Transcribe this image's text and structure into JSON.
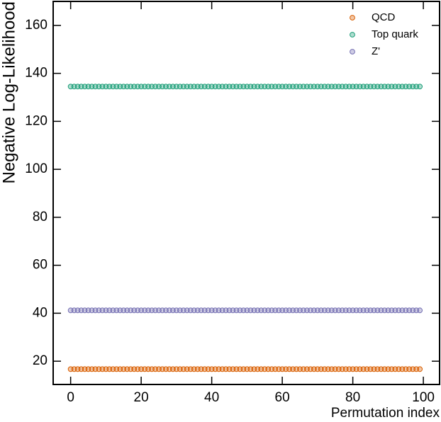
{
  "chart_data": {
    "type": "scatter",
    "x_label": "Permutation index",
    "y_label": "Negative Log-Likelihood",
    "x": [
      0,
      1,
      2,
      3,
      4,
      5,
      6,
      7,
      8,
      9,
      10,
      11,
      12,
      13,
      14,
      15,
      16,
      17,
      18,
      19,
      20,
      21,
      22,
      23,
      24,
      25,
      26,
      27,
      28,
      29,
      30,
      31,
      32,
      33,
      34,
      35,
      36,
      37,
      38,
      39,
      40,
      41,
      42,
      43,
      44,
      45,
      46,
      47,
      48,
      49,
      50,
      51,
      52,
      53,
      54,
      55,
      56,
      57,
      58,
      59,
      60,
      61,
      62,
      63,
      64,
      65,
      66,
      67,
      68,
      69,
      70,
      71,
      72,
      73,
      74,
      75,
      76,
      77,
      78,
      79,
      80,
      81,
      82,
      83,
      84,
      85,
      86,
      87,
      88,
      89,
      90,
      91,
      92,
      93,
      94,
      95,
      96,
      97,
      98,
      99
    ],
    "series": [
      {
        "name": "QCD",
        "color": "#d95f02",
        "values": [
          16.7,
          16.7,
          16.7,
          16.7,
          16.7,
          16.7,
          16.7,
          16.7,
          16.7,
          16.7,
          16.7,
          16.7,
          16.7,
          16.7,
          16.7,
          16.7,
          16.7,
          16.7,
          16.7,
          16.7,
          16.7,
          16.7,
          16.7,
          16.7,
          16.7,
          16.7,
          16.7,
          16.7,
          16.7,
          16.7,
          16.7,
          16.7,
          16.7,
          16.7,
          16.7,
          16.7,
          16.7,
          16.7,
          16.7,
          16.7,
          16.7,
          16.7,
          16.7,
          16.7,
          16.7,
          16.7,
          16.7,
          16.7,
          16.7,
          16.7,
          16.7,
          16.7,
          16.7,
          16.7,
          16.7,
          16.7,
          16.7,
          16.7,
          16.7,
          16.7,
          16.7,
          16.7,
          16.7,
          16.7,
          16.7,
          16.7,
          16.7,
          16.7,
          16.7,
          16.7,
          16.7,
          16.7,
          16.7,
          16.7,
          16.7,
          16.7,
          16.7,
          16.7,
          16.7,
          16.7,
          16.7,
          16.7,
          16.7,
          16.7,
          16.7,
          16.7,
          16.7,
          16.7,
          16.7,
          16.7,
          16.7,
          16.7,
          16.7,
          16.7,
          16.7,
          16.7,
          16.7,
          16.7,
          16.7,
          16.7
        ]
      },
      {
        "name": "Top quark",
        "color": "#1b9e77",
        "values": [
          134.5,
          134.5,
          134.5,
          134.5,
          134.5,
          134.5,
          134.5,
          134.5,
          134.5,
          134.5,
          134.5,
          134.5,
          134.5,
          134.5,
          134.5,
          134.5,
          134.5,
          134.5,
          134.5,
          134.5,
          134.5,
          134.5,
          134.5,
          134.5,
          134.5,
          134.5,
          134.5,
          134.5,
          134.5,
          134.5,
          134.5,
          134.5,
          134.5,
          134.5,
          134.5,
          134.5,
          134.5,
          134.5,
          134.5,
          134.5,
          134.5,
          134.5,
          134.5,
          134.5,
          134.5,
          134.5,
          134.5,
          134.5,
          134.5,
          134.5,
          134.5,
          134.5,
          134.5,
          134.5,
          134.5,
          134.5,
          134.5,
          134.5,
          134.5,
          134.5,
          134.5,
          134.5,
          134.5,
          134.5,
          134.5,
          134.5,
          134.5,
          134.5,
          134.5,
          134.5,
          134.5,
          134.5,
          134.5,
          134.5,
          134.5,
          134.5,
          134.5,
          134.5,
          134.5,
          134.5,
          134.5,
          134.5,
          134.5,
          134.5,
          134.5,
          134.5,
          134.5,
          134.5,
          134.5,
          134.5,
          134.5,
          134.5,
          134.5,
          134.5,
          134.5,
          134.5,
          134.5,
          134.5,
          134.5,
          134.5
        ]
      },
      {
        "name": "Z'",
        "color": "#7570b3",
        "values": [
          41.2,
          41.2,
          41.2,
          41.2,
          41.2,
          41.2,
          41.2,
          41.2,
          41.2,
          41.2,
          41.2,
          41.2,
          41.2,
          41.2,
          41.2,
          41.2,
          41.2,
          41.2,
          41.2,
          41.2,
          41.2,
          41.2,
          41.2,
          41.2,
          41.2,
          41.2,
          41.2,
          41.2,
          41.2,
          41.2,
          41.2,
          41.2,
          41.2,
          41.2,
          41.2,
          41.2,
          41.2,
          41.2,
          41.2,
          41.2,
          41.2,
          41.2,
          41.2,
          41.2,
          41.2,
          41.2,
          41.2,
          41.2,
          41.2,
          41.2,
          41.2,
          41.2,
          41.2,
          41.2,
          41.2,
          41.2,
          41.2,
          41.2,
          41.2,
          41.2,
          41.2,
          41.2,
          41.2,
          41.2,
          41.2,
          41.2,
          41.2,
          41.2,
          41.2,
          41.2,
          41.2,
          41.2,
          41.2,
          41.2,
          41.2,
          41.2,
          41.2,
          41.2,
          41.2,
          41.2,
          41.2,
          41.2,
          41.2,
          41.2,
          41.2,
          41.2,
          41.2,
          41.2,
          41.2,
          41.2,
          41.2,
          41.2,
          41.2,
          41.2,
          41.2,
          41.2,
          41.2,
          41.2,
          41.2,
          41.2
        ]
      }
    ],
    "xlim": [
      -4.95,
      104.6
    ],
    "ylim": [
      10.3,
      170
    ],
    "xticks": [
      0,
      20,
      40,
      60,
      80,
      100
    ],
    "yticks": [
      20,
      40,
      60,
      80,
      100,
      120,
      140,
      160
    ],
    "legend": "upper right"
  }
}
